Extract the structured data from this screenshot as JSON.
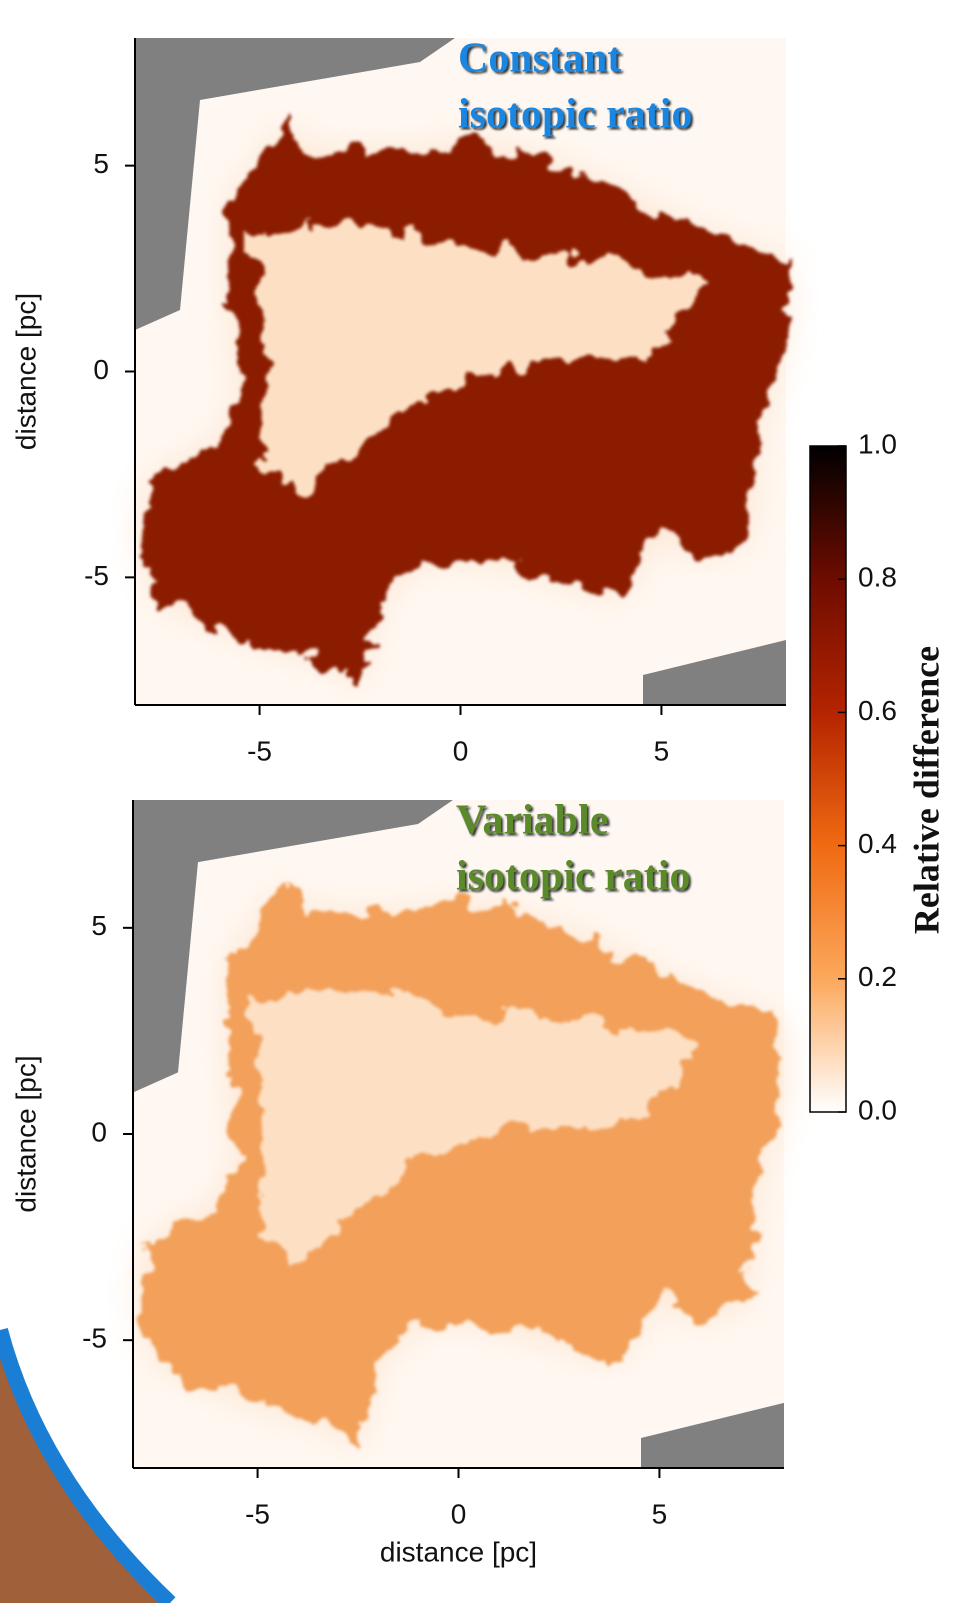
{
  "chart_data": [
    {
      "type": "heatmap",
      "title": [
        "Constant",
        "isotopic ratio"
      ],
      "title_color": "#1a86e0",
      "color": "#8b1a00",
      "ylabel": "distance [pc]",
      "xlim": [
        -8.1,
        8.1
      ],
      "ylim": [
        -8.1,
        8.1
      ],
      "xticks": [
        -5,
        0,
        5
      ],
      "yticks": [
        -5,
        0,
        5
      ]
    },
    {
      "type": "heatmap",
      "title": [
        "Variable",
        "isotopic ratio"
      ],
      "title_color": "#5a8a2a",
      "color": "#f2a05a",
      "ylabel": "distance [pc]",
      "xlabel": "distance [pc]",
      "xlim": [
        -8.1,
        8.1
      ],
      "ylim": [
        -8.1,
        8.1
      ],
      "xticks": [
        -5,
        0,
        5
      ],
      "yticks": [
        -5,
        0,
        5
      ]
    }
  ],
  "colorbar": {
    "label": "Relative difference",
    "lim": [
      0,
      1
    ],
    "ticks": [
      {
        "value": 0,
        "label": "0.0"
      },
      {
        "value": 0.2,
        "label": "0.2"
      },
      {
        "value": 0.4,
        "label": "0.4"
      },
      {
        "value": 0.6,
        "label": "0.6"
      },
      {
        "value": 0.8,
        "label": "0.8"
      },
      {
        "value": 1,
        "label": "1.0"
      }
    ],
    "colormap": [
      "#ffffff",
      "#fca85c",
      "#f06a12",
      "#b42400",
      "#6e0c00",
      "#000000"
    ]
  }
}
